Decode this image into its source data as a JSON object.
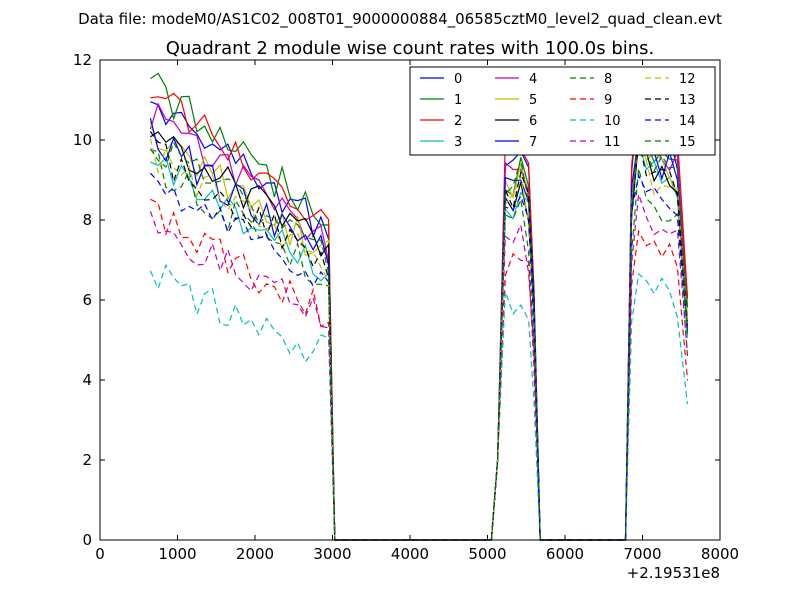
{
  "figure": {
    "suptitle": "Data file: modeM0/AS1C02_008T01_9000000884_06585cztM0_level2_quad_clean.evt"
  },
  "chart_data": {
    "type": "line",
    "title": "Quadrant 2 module wise count rates with 100.0s bins.",
    "xlabel": "",
    "ylabel": "",
    "x_offset_label": "+2.19531e8",
    "xlim": [
      0,
      8000
    ],
    "ylim": [
      0,
      12
    ],
    "xticks": [
      "0",
      "1000",
      "2000",
      "3000",
      "4000",
      "5000",
      "6000",
      "7000",
      "8000"
    ],
    "yticks": [
      "0",
      "2",
      "4",
      "6",
      "8",
      "10",
      "12"
    ],
    "legend_position": "top-right",
    "legend_columns": 4,
    "series": [
      {
        "name": "0",
        "color": "#0000ff",
        "dash": "solid",
        "base": 11.0,
        "late": 10.3
      },
      {
        "name": "1",
        "color": "#008000",
        "dash": "solid",
        "base": 11.4,
        "late": 9.9
      },
      {
        "name": "2",
        "color": "#ff0000",
        "dash": "solid",
        "base": 11.2,
        "late": 10.6
      },
      {
        "name": "3",
        "color": "#00bfbf",
        "dash": "solid",
        "base": 9.6,
        "late": 9.3
      },
      {
        "name": "4",
        "color": "#bf00bf",
        "dash": "solid",
        "base": 10.6,
        "late": 10.1
      },
      {
        "name": "5",
        "color": "#bfbf00",
        "dash": "solid",
        "base": 10.2,
        "late": 9.6
      },
      {
        "name": "6",
        "color": "#000000",
        "dash": "solid",
        "base": 10.3,
        "late": 9.4
      },
      {
        "name": "7",
        "color": "#0000ff",
        "dash": "solid",
        "base": 10.1,
        "late": 9.8
      },
      {
        "name": "8",
        "color": "#008000",
        "dash": "dashed",
        "base": 9.4,
        "late": 8.6
      },
      {
        "name": "9",
        "color": "#ff0000",
        "dash": "dashed",
        "base": 8.1,
        "late": 7.6
      },
      {
        "name": "10",
        "color": "#00bfbf",
        "dash": "dashed",
        "base": 6.6,
        "late": 6.4
      },
      {
        "name": "11",
        "color": "#bf00bf",
        "dash": "dashed",
        "base": 7.9,
        "late": 8.0
      },
      {
        "name": "12",
        "color": "#bfbf00",
        "dash": "dashed",
        "base": 9.7,
        "late": 9.2
      },
      {
        "name": "13",
        "color": "#000000",
        "dash": "dashed",
        "base": 9.8,
        "late": 9.5
      },
      {
        "name": "14",
        "color": "#0000ff",
        "dash": "dashed",
        "base": 9.1,
        "late": 9.0
      },
      {
        "name": "15",
        "color": "#008000",
        "dash": "dashed",
        "base": 10.0,
        "late": 9.7
      }
    ]
  }
}
